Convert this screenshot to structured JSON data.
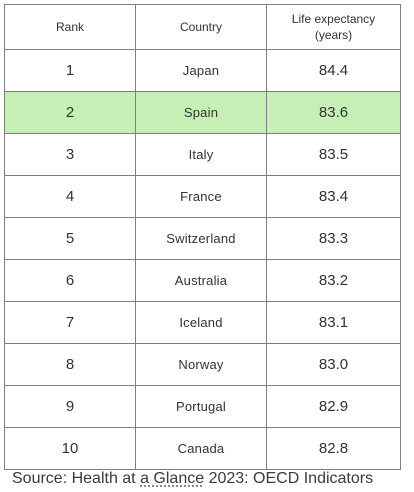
{
  "table": {
    "headers": {
      "rank": "Rank",
      "country": "Country",
      "life_line1": "Life expectancy",
      "life_line2": "(years)"
    },
    "rows": [
      {
        "rank": "1",
        "country": "Japan",
        "life": "84.4"
      },
      {
        "rank": "2",
        "country": "Spain",
        "life": "83.6"
      },
      {
        "rank": "3",
        "country": "Italy",
        "life": "83.5"
      },
      {
        "rank": "4",
        "country": "France",
        "life": "83.4"
      },
      {
        "rank": "5",
        "country": "Switzerland",
        "life": "83.3"
      },
      {
        "rank": "6",
        "country": "Australia",
        "life": "83.2"
      },
      {
        "rank": "7",
        "country": "Iceland",
        "life": "83.1"
      },
      {
        "rank": "8",
        "country": "Norway",
        "life": "83.0"
      },
      {
        "rank": "9",
        "country": "Portugal",
        "life": "82.9"
      },
      {
        "rank": "10",
        "country": "Canada",
        "life": "82.8"
      }
    ],
    "highlight_color": "#c6efb5",
    "border_color": "#7f7f7f"
  },
  "source": {
    "prefix": "Source: Health at ",
    "underlined": "a Glance",
    "suffix": " 2023: OECD Indicators"
  }
}
